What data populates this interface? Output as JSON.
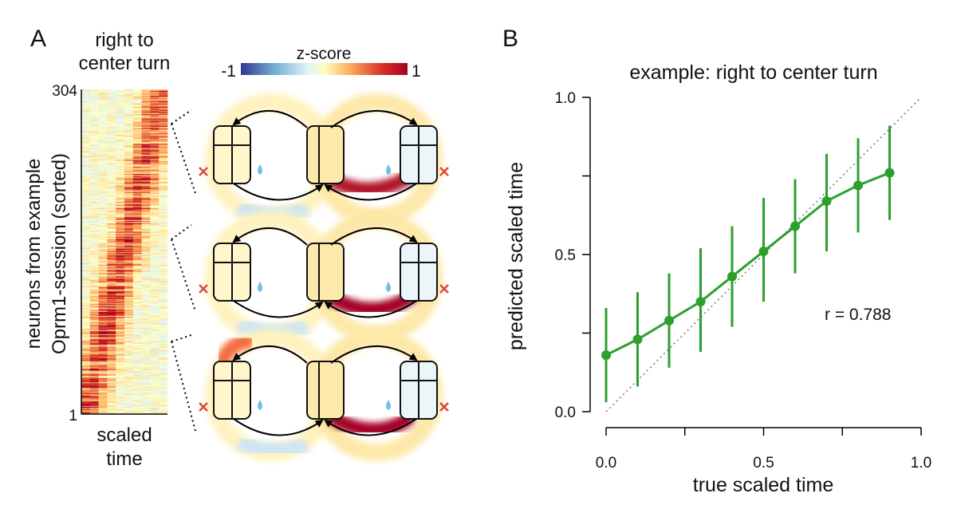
{
  "panel_a": {
    "letter": "A",
    "heatmap_title_line1": "right to",
    "heatmap_title_line2": "center turn",
    "ylabel_line1": "neurons from example",
    "ylabel_line2": "Oprm1-session (sorted)",
    "xlabel_line1": "scaled",
    "xlabel_line2": "time",
    "y_top_tick": "304",
    "y_bottom_tick": "1",
    "colorbar": {
      "label": "z-score",
      "min_label": "-1",
      "max_label": "1",
      "min": -1,
      "max": 1
    },
    "heatmap": {
      "n_neurons": 304,
      "n_time_bins": 10
    },
    "maze_examples": [
      {
        "reward_icon": "water-drop-icon",
        "error_icon": "x-mark-icon"
      },
      {
        "reward_icon": "water-drop-icon",
        "error_icon": "x-mark-icon"
      },
      {
        "reward_icon": "water-drop-icon",
        "error_icon": "x-mark-icon"
      }
    ]
  },
  "panel_b": {
    "letter": "B",
    "r_label": "r = 0.788"
  },
  "chart_data": {
    "type": "line",
    "title": "example: right to center turn",
    "xlabel": "true scaled time",
    "ylabel": "predicted scaled time",
    "xlim": [
      0,
      1
    ],
    "ylim": [
      0,
      1
    ],
    "xticks": [
      "0.0",
      "0.5",
      "1.0"
    ],
    "yticks": [
      "0.0",
      "0.5",
      "1.0"
    ],
    "grid": false,
    "diagonal_reference": true,
    "color": "#2ca02c",
    "series": [
      {
        "x": [
          0.0,
          0.1,
          0.2,
          0.3,
          0.4,
          0.5,
          0.6,
          0.7,
          0.8,
          0.9
        ],
        "y": [
          0.18,
          0.23,
          0.29,
          0.35,
          0.43,
          0.51,
          0.59,
          0.67,
          0.72,
          0.76
        ],
        "err_low": [
          0.03,
          0.08,
          0.14,
          0.19,
          0.27,
          0.35,
          0.44,
          0.51,
          0.57,
          0.61
        ],
        "err_high": [
          0.33,
          0.38,
          0.44,
          0.52,
          0.59,
          0.68,
          0.74,
          0.82,
          0.87,
          0.91
        ]
      }
    ]
  }
}
